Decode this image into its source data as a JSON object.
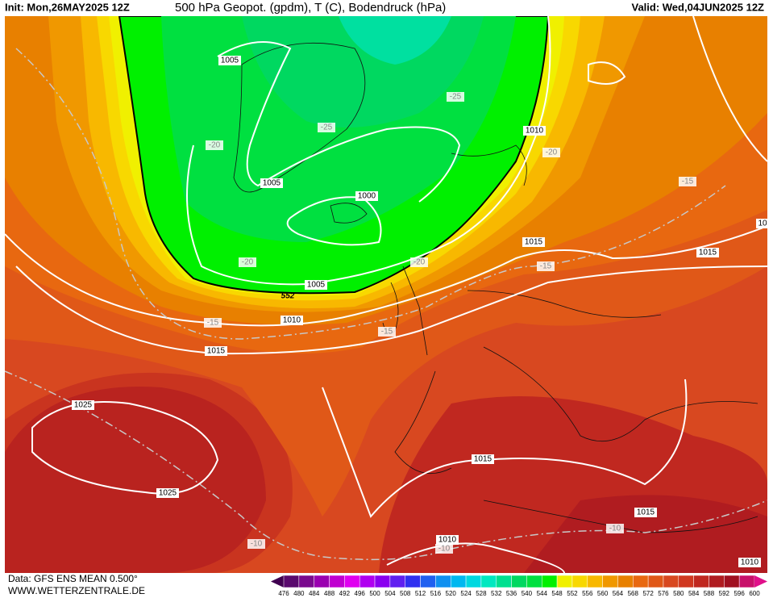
{
  "header": {
    "init": "Init: Mon,26MAY2025 12Z",
    "title": "500 hPa Geopot. (gpdm), T (C), Bodendruck (hPa)",
    "valid": "Valid: Wed,04JUN2025 12Z"
  },
  "contour_labels": [
    "1005",
    "-25",
    "-25",
    "1010",
    "-20",
    "-20",
    "1005",
    "1000",
    "-15",
    "10",
    "1015",
    "1015",
    "-20",
    "-20",
    "-15",
    "1005",
    "552",
    "-15",
    "1010",
    "-15",
    "1015",
    "1025",
    "1015",
    "1025",
    "1015",
    "-10",
    "-10",
    "1010",
    "-10",
    "1010"
  ],
  "legend": {
    "labels": [
      476,
      480,
      484,
      488,
      492,
      496,
      500,
      504,
      508,
      512,
      516,
      520,
      524,
      528,
      532,
      536,
      540,
      544,
      548,
      552,
      556,
      560,
      564,
      568,
      572,
      576,
      580,
      584,
      588,
      592,
      596,
      600
    ],
    "colors": [
      "#400050",
      "#5a0a6e",
      "#7a0a8e",
      "#9a00b0",
      "#c000d0",
      "#e000f0",
      "#b000f0",
      "#8a00f0",
      "#6020f0",
      "#3030f0",
      "#2060f0",
      "#1090f0",
      "#00b8f0",
      "#00d8e0",
      "#00e8c0",
      "#00e090",
      "#00d860",
      "#00e040",
      "#00f000",
      "#f0f000",
      "#f8d800",
      "#f8b800",
      "#f09800",
      "#e88000",
      "#e86810",
      "#e05818",
      "#d84820",
      "#d03820",
      "#c02820",
      "#b01c20",
      "#a01020",
      "#c8106a",
      "#e0108a"
    ]
  },
  "footer": {
    "source": "Data: GFS ENS MEAN 0.500°",
    "site": "WWW.WETTERZENTRALE.DE"
  }
}
